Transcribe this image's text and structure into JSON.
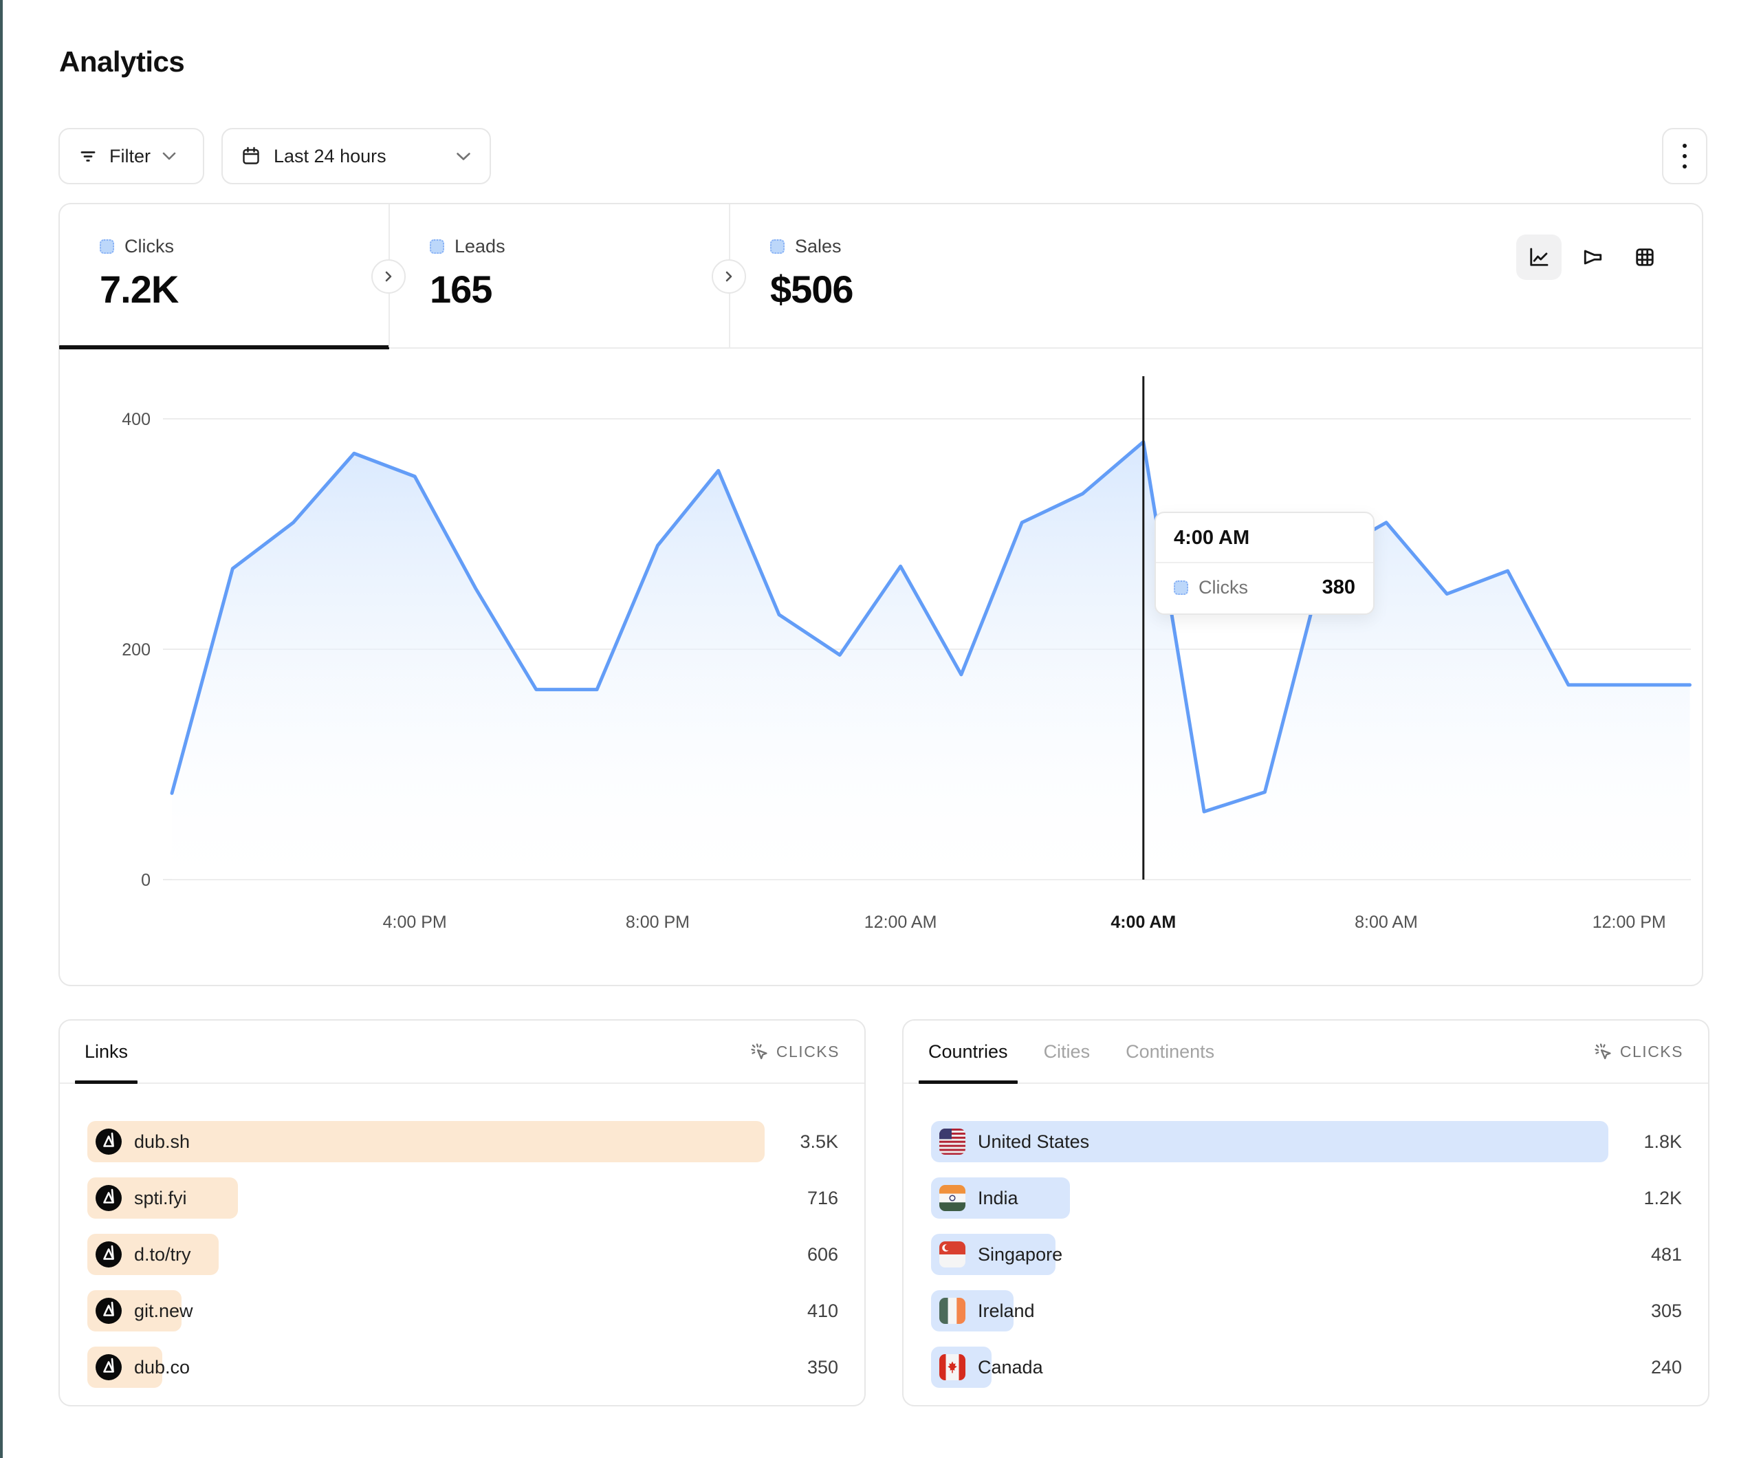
{
  "page": {
    "title": "Analytics"
  },
  "colors": {
    "accent_blue": "#639df7",
    "area_fill_top": "#d3e5fd",
    "links_bar": "#fce8d2",
    "countries_bar": "#d8e6fc",
    "grid_line": "#ececec",
    "axis_text": "#525252",
    "crosshair": "#1a1a1a",
    "left_edge": "#3e5a5c"
  },
  "toolbar": {
    "filter_label": "Filter",
    "date_range_label": "Last 24 hours",
    "filter_icon": "filter-lines-icon",
    "date_icon": "calendar-icon",
    "menu_icon": "kebab-menu-icon"
  },
  "stats": {
    "tabs": [
      {
        "label": "Clicks",
        "value": "7.2K",
        "active": true
      },
      {
        "label": "Leads",
        "value": "165",
        "active": false
      },
      {
        "label": "Sales",
        "value": "$506",
        "active": false
      }
    ]
  },
  "view_toggles": [
    {
      "icon": "line-chart-icon",
      "active": true
    },
    {
      "icon": "funnel-icon",
      "active": false
    },
    {
      "icon": "table-grid-icon",
      "active": false
    }
  ],
  "chart_data": {
    "type": "area",
    "title": "Clicks over last 24 hours",
    "x": [
      "12:00 PM",
      "1:00 PM",
      "2:00 PM",
      "3:00 PM",
      "4:00 PM",
      "5:00 PM",
      "6:00 PM",
      "7:00 PM",
      "8:00 PM",
      "9:00 PM",
      "10:00 PM",
      "11:00 PM",
      "12:00 AM",
      "1:00 AM",
      "2:00 AM",
      "3:00 AM",
      "4:00 AM",
      "5:00 AM",
      "6:00 AM",
      "7:00 AM",
      "8:00 AM",
      "9:00 AM",
      "10:00 AM",
      "11:00 AM",
      "12:00 PM",
      "1:00 PM"
    ],
    "series": [
      {
        "name": "Clicks",
        "values": [
          75,
          270,
          310,
          370,
          350,
          253,
          165,
          165,
          290,
          355,
          230,
          195,
          272,
          178,
          310,
          335,
          380,
          59,
          76,
          280,
          310,
          248,
          268,
          169,
          169,
          169
        ]
      }
    ],
    "x_ticks": [
      {
        "index": 4,
        "label": "4:00 PM"
      },
      {
        "index": 8,
        "label": "8:00 PM"
      },
      {
        "index": 12,
        "label": "12:00 AM"
      },
      {
        "index": 16,
        "label": "4:00 AM",
        "active": true
      },
      {
        "index": 20,
        "label": "8:00 AM"
      },
      {
        "index": 24,
        "label": "12:00 PM"
      }
    ],
    "y_ticks": [
      0,
      200,
      400
    ],
    "ylim": [
      0,
      400
    ],
    "grid": "horizontal",
    "hover_index": 16
  },
  "tooltip": {
    "title": "4:00 AM",
    "series": "Clicks",
    "value": "380"
  },
  "links_panel": {
    "tabs": [
      {
        "label": "Links",
        "active": true
      }
    ],
    "metric_label": "CLICKS",
    "rows": [
      {
        "label": "dub.sh",
        "value": "3.5K",
        "bar_pct": 90
      },
      {
        "label": "spti.fyi",
        "value": "716",
        "bar_pct": 20
      },
      {
        "label": "d.to/try",
        "value": "606",
        "bar_pct": 17.5
      },
      {
        "label": "git.new",
        "value": "410",
        "bar_pct": 12.5
      },
      {
        "label": "dub.co",
        "value": "350",
        "bar_pct": 10
      }
    ]
  },
  "countries_panel": {
    "tabs": [
      {
        "label": "Countries",
        "active": true
      },
      {
        "label": "Cities",
        "active": false
      },
      {
        "label": "Continents",
        "active": false
      }
    ],
    "metric_label": "CLICKS",
    "rows": [
      {
        "label": "United States",
        "flag": "us",
        "value": "1.8K",
        "bar_pct": 90
      },
      {
        "label": "India",
        "flag": "in",
        "value": "1.2K",
        "bar_pct": 18.5
      },
      {
        "label": "Singapore",
        "flag": "sg",
        "value": "481",
        "bar_pct": 16.5
      },
      {
        "label": "Ireland",
        "flag": "ie",
        "value": "305",
        "bar_pct": 11
      },
      {
        "label": "Canada",
        "flag": "ca",
        "value": "240",
        "bar_pct": 8
      }
    ]
  }
}
